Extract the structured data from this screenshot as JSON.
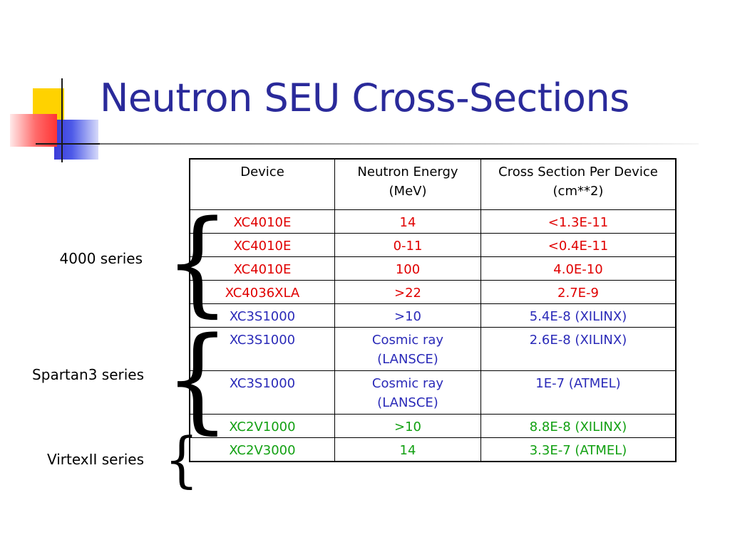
{
  "slide": {
    "title": "Neutron SEU Cross-Sections"
  },
  "table": {
    "headers": [
      {
        "line1": "Device",
        "line2": ""
      },
      {
        "line1": "Neutron Energy",
        "line2": "(MeV)"
      },
      {
        "line1": "Cross Section Per Device",
        "line2": "(cm**2)"
      }
    ],
    "rows": [
      {
        "device": "XC4010E",
        "energy": "14",
        "energy_line2": "",
        "cross_section": "<1.3E-11",
        "color": "#e00000"
      },
      {
        "device": "XC4010E",
        "energy": "0-11",
        "energy_line2": "",
        "cross_section": "<0.4E-11",
        "color": "#e00000"
      },
      {
        "device": "XC4010E",
        "energy": "100",
        "energy_line2": "",
        "cross_section": "4.0E-10",
        "color": "#e00000"
      },
      {
        "device": "XC4036XLA",
        "energy": ">22",
        "energy_line2": "",
        "cross_section": "2.7E-9",
        "color": "#e00000"
      },
      {
        "device": "XC3S1000",
        "energy": ">10",
        "energy_line2": "",
        "cross_section": "5.4E-8 (XILINX)",
        "color": "#2a2ab8"
      },
      {
        "device": "XC3S1000",
        "energy": "Cosmic ray",
        "energy_line2": "(LANSCE)",
        "cross_section": "2.6E-8 (XILINX)",
        "color": "#2a2ab8"
      },
      {
        "device": "XC3S1000",
        "energy": "Cosmic ray",
        "energy_line2": "(LANSCE)",
        "cross_section": "1E-7 (ATMEL)",
        "color": "#2a2ab8"
      },
      {
        "device": "XC2V1000",
        "energy": ">10",
        "energy_line2": "",
        "cross_section": "8.8E-8 (XILINX)",
        "color": "#12a012"
      },
      {
        "device": "XC2V3000",
        "energy": "14",
        "energy_line2": "",
        "cross_section": "3.3E-7 (ATMEL)",
        "color": "#12a012"
      }
    ]
  },
  "groups": [
    {
      "label": "4000 series"
    },
    {
      "label": "Spartan3 series"
    },
    {
      "label": "VirtexII series"
    }
  ],
  "colors": {
    "title": "#2a2a9a",
    "series_4000": "#e00000",
    "series_spartan3": "#2a2ab8",
    "series_virtex2": "#12a012"
  }
}
